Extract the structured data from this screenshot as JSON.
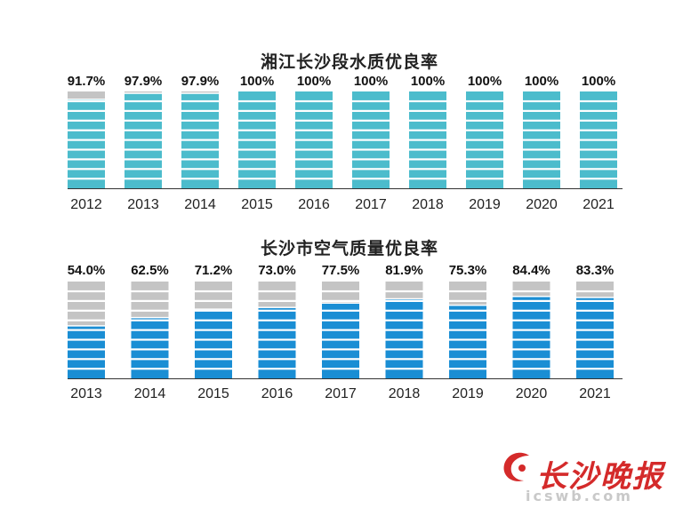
{
  "colors": {
    "water": "#4cbccc",
    "air": "#1a8ed4",
    "gray": "#c4c4c4",
    "logo": "#d42a2a"
  },
  "chart_data": [
    {
      "type": "bar",
      "title": "湘江长沙段水质优良率",
      "categories": [
        "2012",
        "2013",
        "2014",
        "2015",
        "2016",
        "2017",
        "2018",
        "2019",
        "2020",
        "2021"
      ],
      "values": [
        91.7,
        97.9,
        97.9,
        100,
        100,
        100,
        100,
        100,
        100,
        100
      ],
      "data_labels": [
        "91.7%",
        "97.9%",
        "97.9%",
        "100%",
        "100%",
        "100%",
        "100%",
        "100%",
        "100%",
        "100%"
      ],
      "ylim": [
        0,
        100
      ],
      "grid": false,
      "legend": "none"
    },
    {
      "type": "bar",
      "title": "长沙市空气质量优良率",
      "categories": [
        "2013",
        "2014",
        "2015",
        "2016",
        "2017",
        "2018",
        "2019",
        "2020",
        "2021"
      ],
      "values": [
        54.0,
        62.5,
        71.2,
        73.0,
        77.5,
        81.9,
        75.3,
        84.4,
        83.3
      ],
      "data_labels": [
        "54.0%",
        "62.5%",
        "71.2%",
        "73.0%",
        "77.5%",
        "81.9%",
        "75.3%",
        "84.4%",
        "83.3%"
      ],
      "ylim": [
        0,
        100
      ],
      "grid": false,
      "legend": "none"
    }
  ],
  "logo": {
    "name": "长沙晚报",
    "url": "icswb.com",
    "icon": "c-swoosh-logo-icon"
  }
}
